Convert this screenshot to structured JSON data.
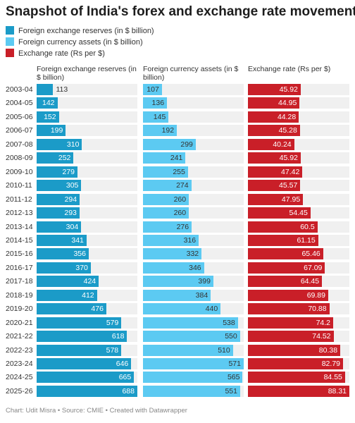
{
  "chart_data": {
    "type": "bar",
    "title": "Snapshot of India's forex and exchange rate movements",
    "categories": [
      "2003-04",
      "2004-05",
      "2005-06",
      "2006-07",
      "2007-08",
      "2008-09",
      "2009-10",
      "2010-11",
      "2011-12",
      "2012-13",
      "2013-14",
      "2014-15",
      "2015-16",
      "2016-17",
      "2017-18",
      "2018-19",
      "2019-20",
      "2020-21",
      "2021-22",
      "2022-23",
      "2023-24",
      "2024-25",
      "2025-26"
    ],
    "series": [
      {
        "name": "Foreign exchange reserves (in $ billion)",
        "color": "#1b9bc8",
        "values": [
          113,
          142,
          152,
          199,
          310,
          252,
          279,
          305,
          294,
          293,
          304,
          341,
          356,
          370,
          424,
          412,
          476,
          579,
          618,
          578,
          646,
          665,
          688
        ]
      },
      {
        "name": "Foreign currency assets (in $ billion)",
        "color": "#5ccaf2",
        "values": [
          107,
          136,
          145,
          192,
          299,
          241,
          255,
          274,
          260,
          260,
          276,
          316,
          332,
          346,
          399,
          384,
          440,
          538,
          550,
          510,
          571,
          565,
          551
        ]
      },
      {
        "name": "Exchange rate (Rs per $)",
        "color": "#c91f28",
        "values": [
          45.92,
          44.95,
          44.28,
          45.28,
          40.24,
          45.92,
          47.42,
          45.57,
          47.95,
          54.45,
          60.5,
          61.15,
          65.46,
          67.09,
          64.45,
          69.89,
          70.88,
          74.2,
          74.52,
          80.38,
          82.79,
          84.55,
          88.31
        ]
      }
    ],
    "source": "Chart: Udit Misra • Source: CMIE • Created with Datawrapper"
  }
}
